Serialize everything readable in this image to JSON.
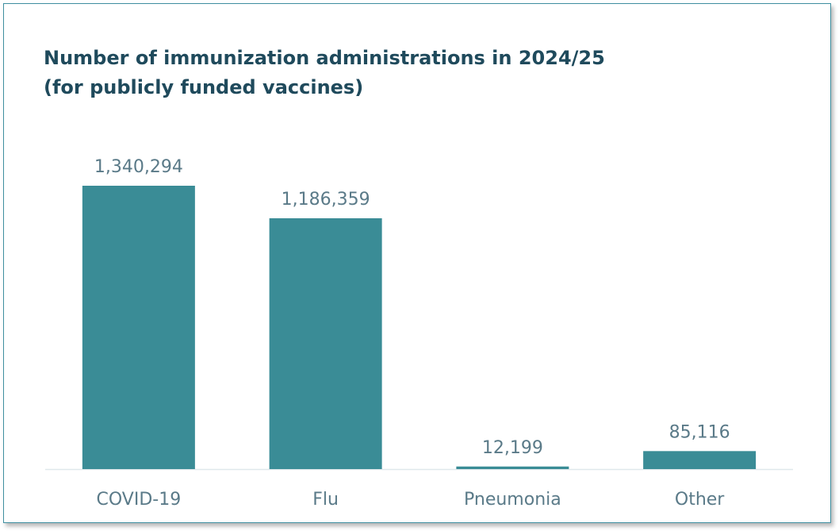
{
  "chart_data": {
    "type": "bar",
    "title": [
      "Number of immunization administrations in 2024/25",
      "(for publicly funded vaccines)"
    ],
    "categories": [
      "COVID-19",
      "Flu",
      "Pneumonia",
      "Other"
    ],
    "values": [
      1340294,
      1186359,
      12199,
      85116
    ],
    "value_labels": [
      "1,340,294",
      "1,186,359",
      "12,199",
      "85,116"
    ],
    "xlabel": "",
    "ylabel": "",
    "ylim": [
      0,
      1340294
    ],
    "grid": false,
    "legend": "none",
    "colors": {
      "bar": "#3a8c96",
      "baseline": "#dfe8ec",
      "text": "#5a7a88",
      "title": "#1f4a5c",
      "border": "#3f8fa0"
    }
  }
}
